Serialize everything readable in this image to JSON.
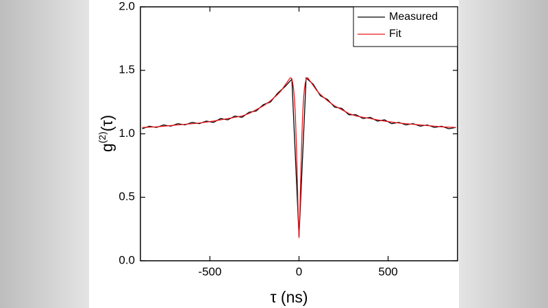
{
  "chart_data": {
    "type": "line",
    "xlabel": "τ (ns)",
    "ylabel": [
      "g",
      "(2)",
      "(τ)"
    ],
    "xlim": [
      -890,
      890
    ],
    "ylim": [
      0,
      2
    ],
    "xticks": [
      -500,
      0,
      500
    ],
    "yticks": [
      {
        "value": 0,
        "label": "0.0"
      },
      0.5,
      {
        "value": 1,
        "label": "1.0"
      },
      1.5,
      {
        "value": 2,
        "label": "2.0"
      }
    ],
    "legend": "upper right",
    "series": [
      {
        "name": "Measured",
        "color": "#000000",
        "x": [
          -880,
          -840,
          -800,
          -760,
          -720,
          -680,
          -640,
          -600,
          -560,
          -520,
          -480,
          -440,
          -400,
          -360,
          -320,
          -280,
          -240,
          -200,
          -160,
          -120,
          -80,
          -40,
          0,
          40,
          80,
          120,
          160,
          200,
          240,
          280,
          320,
          360,
          400,
          440,
          480,
          520,
          560,
          600,
          640,
          680,
          720,
          760,
          800,
          840,
          880
        ],
        "values": [
          1.04,
          1.06,
          1.05,
          1.07,
          1.06,
          1.08,
          1.07,
          1.09,
          1.08,
          1.1,
          1.09,
          1.12,
          1.11,
          1.14,
          1.13,
          1.17,
          1.18,
          1.23,
          1.25,
          1.32,
          1.37,
          1.43,
          0.19,
          1.44,
          1.39,
          1.3,
          1.27,
          1.21,
          1.2,
          1.15,
          1.15,
          1.12,
          1.13,
          1.1,
          1.11,
          1.08,
          1.09,
          1.07,
          1.08,
          1.06,
          1.07,
          1.05,
          1.06,
          1.04,
          1.05
        ]
      },
      {
        "name": "Fit",
        "color": "#e8141a",
        "x": [
          -880,
          -800,
          -720,
          -640,
          -560,
          -480,
          -400,
          -320,
          -280,
          -240,
          -200,
          -160,
          -120,
          -100,
          -80,
          -60,
          -50,
          -45,
          -40,
          -35,
          -30,
          -25,
          -20,
          -15,
          -10,
          -5,
          0,
          5,
          10,
          15,
          20,
          25,
          30,
          35,
          40,
          45,
          50,
          60,
          80,
          100,
          120,
          160,
          200,
          240,
          280,
          320,
          400,
          480,
          560,
          640,
          720,
          800,
          880
        ],
        "values": [
          1.05,
          1.055,
          1.065,
          1.075,
          1.085,
          1.1,
          1.12,
          1.14,
          1.16,
          1.19,
          1.22,
          1.26,
          1.31,
          1.34,
          1.38,
          1.42,
          1.44,
          1.44,
          1.43,
          1.4,
          1.35,
          1.27,
          1.13,
          0.93,
          0.68,
          0.4,
          0.18,
          0.4,
          0.68,
          0.93,
          1.13,
          1.27,
          1.35,
          1.4,
          1.43,
          1.44,
          1.44,
          1.42,
          1.38,
          1.34,
          1.31,
          1.26,
          1.22,
          1.19,
          1.16,
          1.14,
          1.12,
          1.1,
          1.085,
          1.075,
          1.065,
          1.055,
          1.05
        ]
      }
    ]
  }
}
